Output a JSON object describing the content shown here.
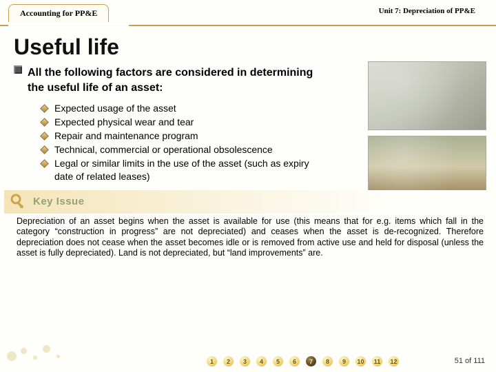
{
  "header": {
    "leftTab": "Accounting for PP&E",
    "rightTab": "Unit 7: Depreciation of PP&E"
  },
  "title": "Useful life",
  "intro": "All the following factors are considered in determining the useful life of an asset:",
  "factors": [
    "Expected usage of the asset",
    "Expected physical wear and tear",
    "Repair and maintenance program",
    "Technical, commercial or operational obsolescence",
    "Legal or similar limits in the use of the asset (such as expiry date of related leases)"
  ],
  "keyIssue": {
    "label": "Key Issue",
    "text": "Depreciation of an asset begins when the asset is available for use (this means that for e.g. items which fall in the category “construction in progress” are not depreciated) and ceases when the asset is de-recognized. Therefore depreciation does not cease when the asset becomes idle or is removed from active use and held for disposal (unless the asset is fully depreciated). Land is not depreciated, but “land improvements” are."
  },
  "pager": {
    "pages": [
      "1",
      "2",
      "3",
      "4",
      "5",
      "6",
      "7",
      "8",
      "9",
      "10",
      "11",
      "12"
    ],
    "active": 7,
    "current": 51,
    "total": 111
  },
  "colors": {
    "accent": "#c9a050",
    "keyLabel": "#97a07a"
  }
}
